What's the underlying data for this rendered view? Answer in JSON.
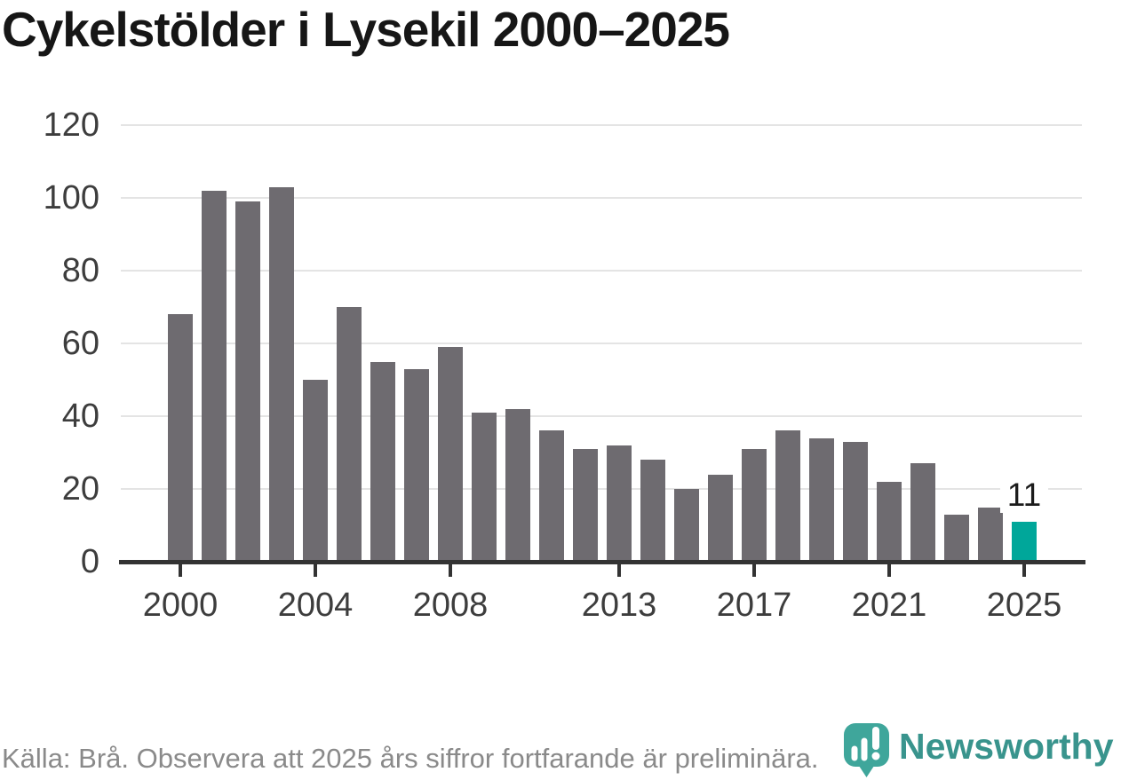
{
  "page": {
    "title": "Cykelstölder i Lysekil 2000–2025"
  },
  "chart_data": {
    "type": "bar",
    "title": "Cykelstölder i Lysekil 2000–2025",
    "xlabel": "",
    "ylabel": "",
    "ylim": [
      0,
      120
    ],
    "grid": true,
    "legend": false,
    "y_ticks": [
      0,
      20,
      40,
      60,
      80,
      100,
      120
    ],
    "x_tick_labels": [
      "2000",
      "2004",
      "2008",
      "2013",
      "2017",
      "2021",
      "2025"
    ],
    "x_tick_years": [
      2000,
      2004,
      2008,
      2013,
      2017,
      2021,
      2025
    ],
    "categories": [
      2000,
      2001,
      2002,
      2003,
      2004,
      2005,
      2006,
      2007,
      2008,
      2009,
      2010,
      2011,
      2012,
      2013,
      2014,
      2015,
      2016,
      2017,
      2018,
      2019,
      2020,
      2021,
      2022,
      2023,
      2024,
      2025
    ],
    "values": [
      68,
      102,
      99,
      103,
      50,
      70,
      55,
      53,
      59,
      41,
      42,
      36,
      31,
      32,
      28,
      20,
      24,
      31,
      36,
      34,
      33,
      22,
      27,
      13,
      15,
      11
    ],
    "highlight_year": 2025,
    "annotation": {
      "year": 2025,
      "label": "11"
    },
    "colors": {
      "bar": "#6e6b70",
      "highlight": "#00a79a",
      "grid": "#e4e4e4",
      "axis": "#333333",
      "tick_label": "#3d3d3d",
      "annotation": "#1c1c1c",
      "title": "#161616",
      "source": "#8a8a8a"
    }
  },
  "footer": {
    "source_note": "Källa: Brå. Observera att 2025 års siffror fortfarande är preliminära."
  },
  "branding": {
    "wordmark": "Newsworthy",
    "icon": "newsworthy-pin-bar-chart-icon",
    "brand_color": "#39948d",
    "icon_color": "#3fa69b"
  }
}
